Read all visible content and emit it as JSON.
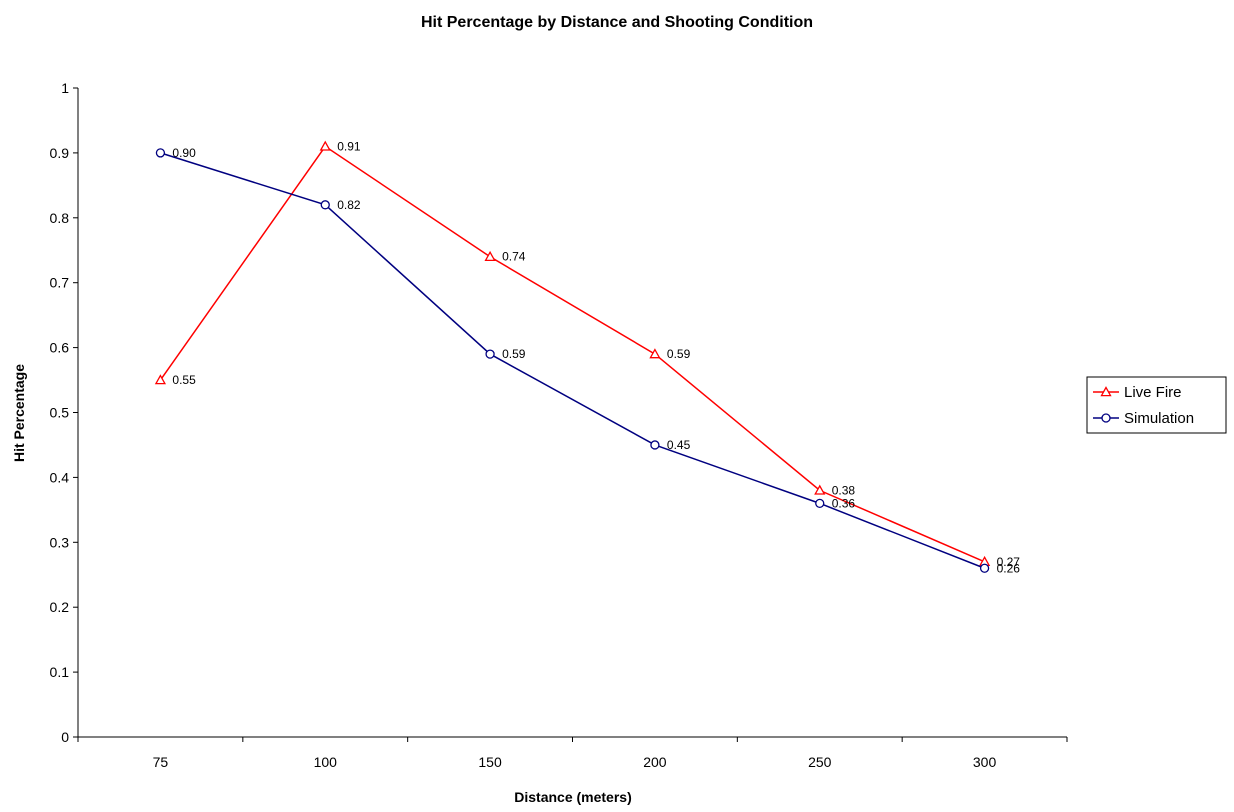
{
  "chart_data": {
    "type": "line",
    "title": "Hit Percentage by Distance and Shooting Condition",
    "xlabel": "Distance (meters)",
    "ylabel": "Hit Percentage",
    "categories": [
      "75",
      "100",
      "150",
      "200",
      "250",
      "300"
    ],
    "ylim": [
      0,
      1
    ],
    "yticks": [
      "0",
      "0.1",
      "0.2",
      "0.3",
      "0.4",
      "0.5",
      "0.6",
      "0.7",
      "0.8",
      "0.9",
      "1"
    ],
    "grid": false,
    "legend_position": "right",
    "series": [
      {
        "name": "Live Fire",
        "color": "#ff0000",
        "marker": "triangle",
        "values": [
          0.55,
          0.91,
          0.74,
          0.59,
          0.38,
          0.27
        ],
        "labels": [
          "0.55",
          "0.91",
          "0.74",
          "0.59",
          "0.38",
          "0.27"
        ]
      },
      {
        "name": "Simulation",
        "color": "#000080",
        "marker": "circle",
        "values": [
          0.9,
          0.82,
          0.59,
          0.45,
          0.36,
          0.26
        ],
        "labels": [
          "0.90",
          "0.82",
          "0.59",
          "0.45",
          "0.36",
          "0.26"
        ]
      }
    ]
  }
}
